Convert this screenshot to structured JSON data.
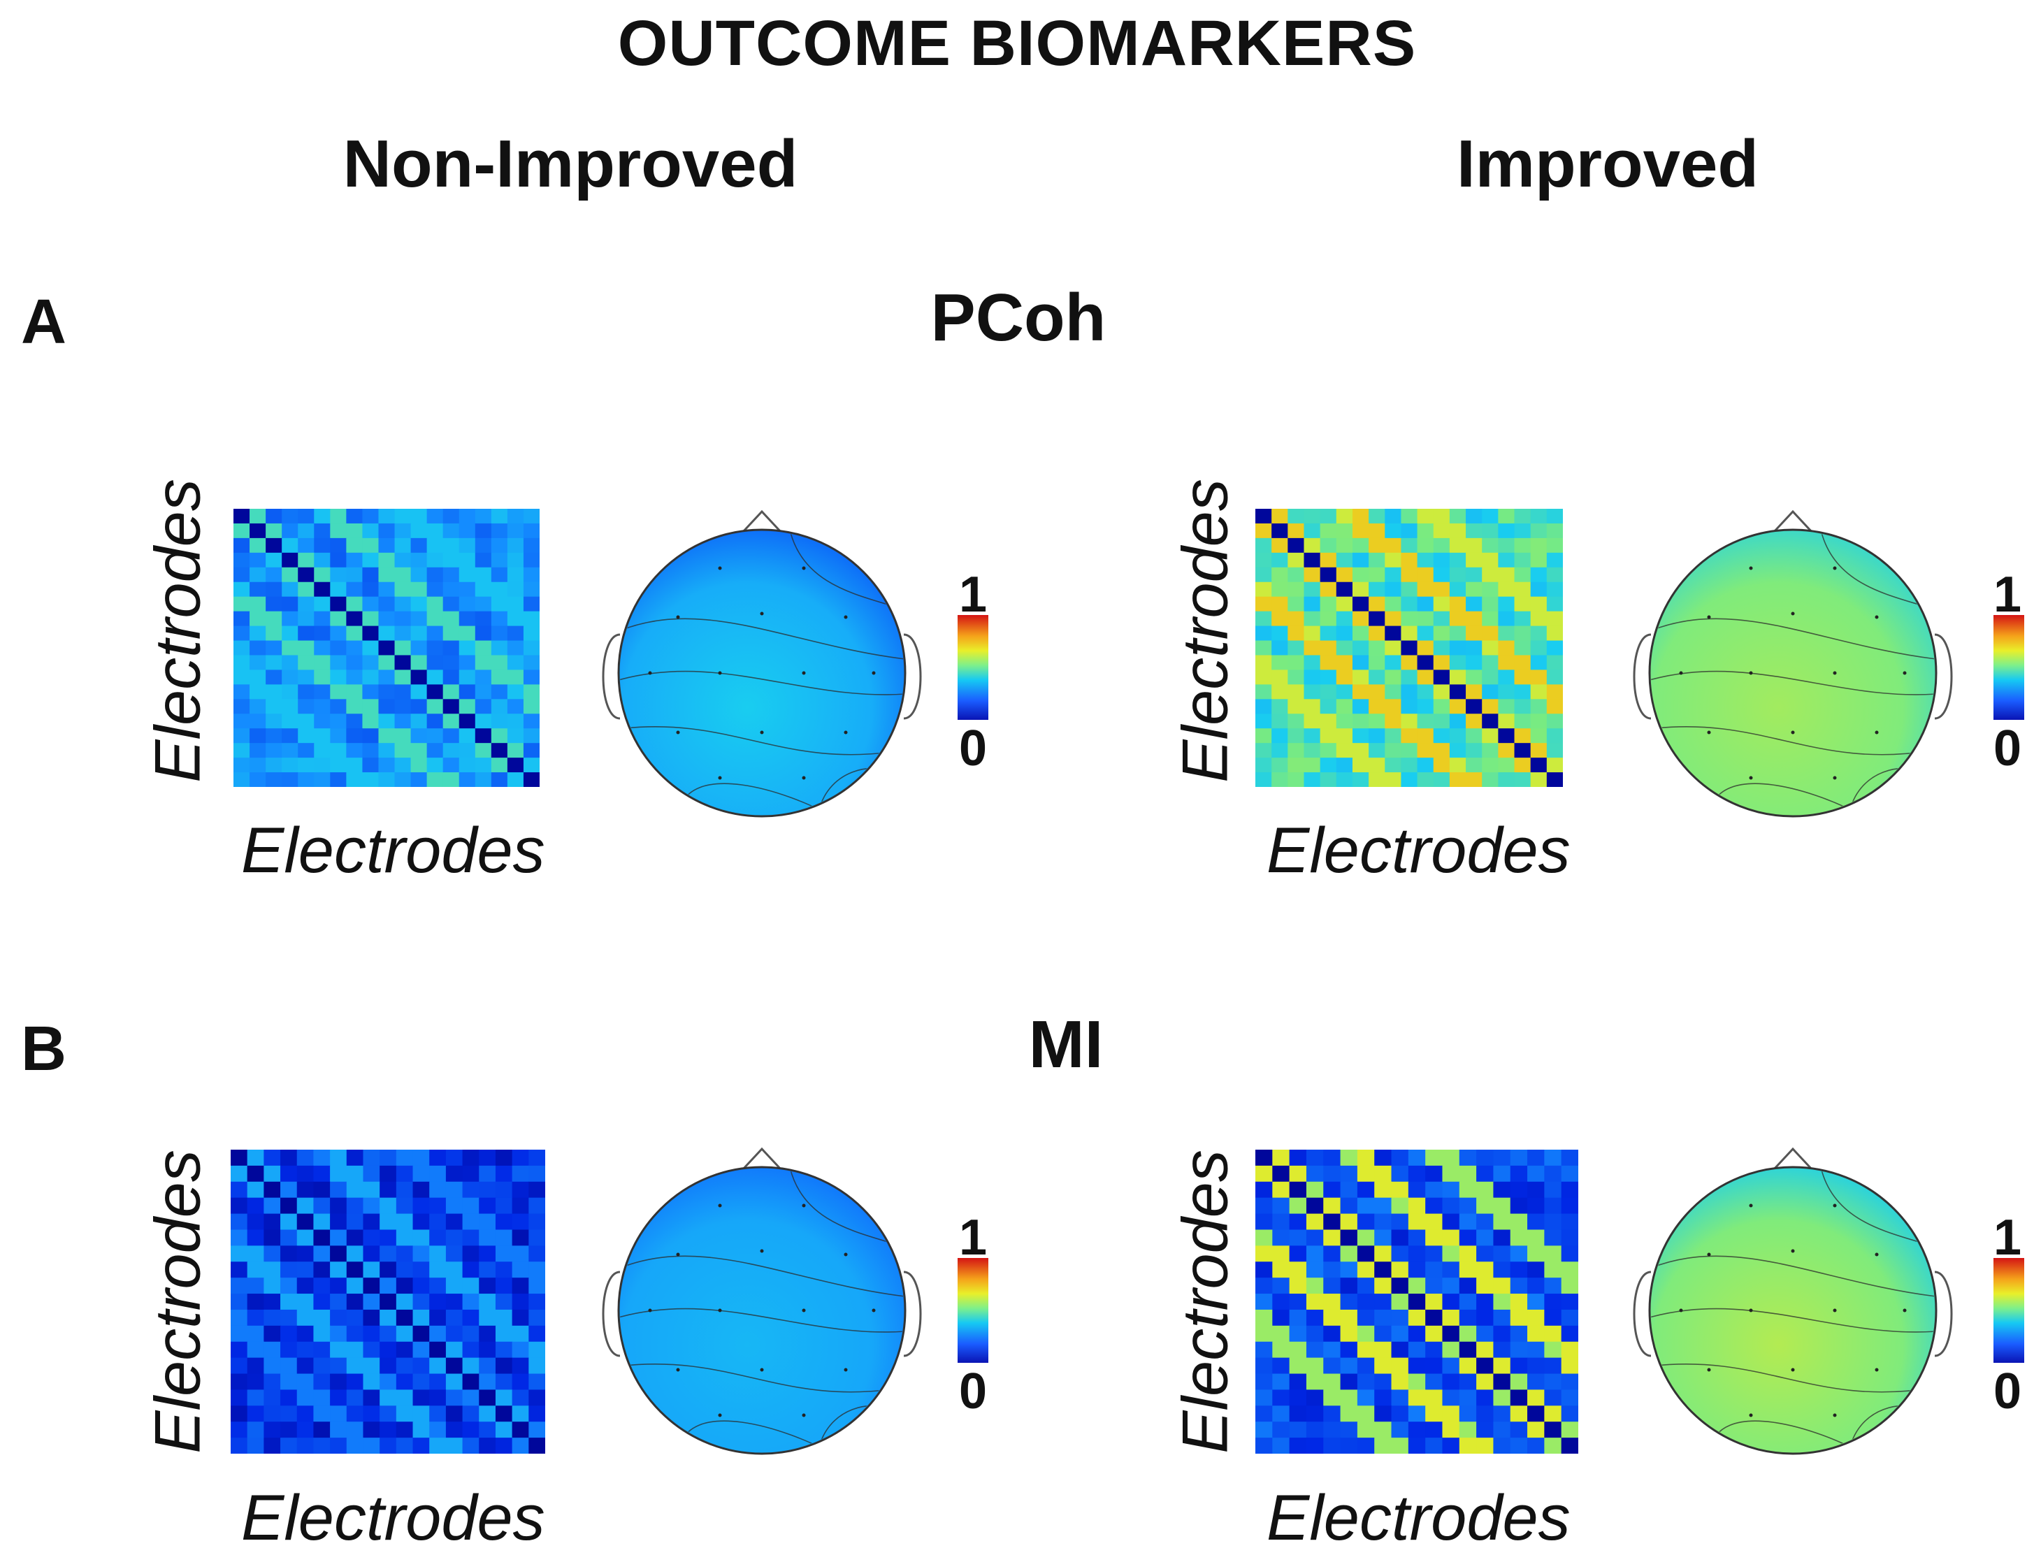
{
  "title": "OUTCOME BIOMARKERS",
  "columns": [
    "Non-Improved",
    "Improved"
  ],
  "rows": [
    {
      "letter": "A",
      "measure": "PCoh"
    },
    {
      "letter": "B",
      "measure": "MI"
    }
  ],
  "axis_label": "Electrodes",
  "colorbar": {
    "max_label": "1",
    "min_label": "0"
  },
  "panels": [
    {
      "measure": "PCoh",
      "group": "Non-Improved",
      "base": 0.3,
      "diag_tint": 0.55,
      "head_center": 0.42,
      "head_edge": 0.3
    },
    {
      "measure": "PCoh",
      "group": "Improved",
      "base": 0.48,
      "diag_tint": 0.8,
      "head_center": 0.6,
      "head_edge": 0.52
    },
    {
      "measure": "MI",
      "group": "Non-Improved",
      "base": 0.14,
      "diag_tint": 0.42,
      "head_center": 0.38,
      "head_edge": 0.32
    },
    {
      "measure": "MI",
      "group": "Improved",
      "base": 0.18,
      "diag_tint": 0.74,
      "head_center": 0.62,
      "head_edge": 0.5
    }
  ]
}
